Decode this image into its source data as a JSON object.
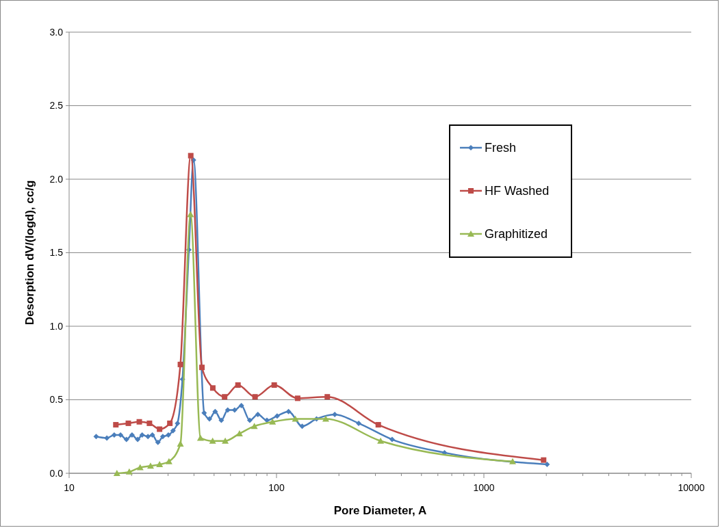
{
  "chart_data": {
    "type": "line",
    "xlabel": "Pore Diameter, A",
    "ylabel": "Desorption dV/(logd), cc/g",
    "log": "x",
    "grid": "y",
    "legend": "right",
    "line_style": "solid",
    "xlim": [
      10,
      10000
    ],
    "xticks": [
      10,
      100,
      1000,
      10000
    ],
    "ylim": [
      0,
      3
    ],
    "yticks": [
      {
        "value": 0,
        "label": "0.0"
      },
      {
        "value": 0.5,
        "label": "0.5"
      },
      {
        "value": 1,
        "label": "1.0"
      },
      {
        "value": 1.5,
        "label": "1.5"
      },
      {
        "value": 2,
        "label": "2.0"
      },
      {
        "value": 2.5,
        "label": "2.5"
      },
      {
        "value": 3,
        "label": "3.0"
      }
    ],
    "series": [
      {
        "name": "Fresh",
        "color": "#4a7ebb",
        "marker": "diamond",
        "x": [
          13.5,
          15.2,
          16.5,
          17.7,
          18.9,
          20.1,
          21.4,
          22.5,
          24.0,
          25.2,
          26.8,
          28.3,
          30.1,
          31.7,
          33.3,
          35.2,
          37.8,
          39.8,
          44.8,
          47.5,
          50.6,
          54.2,
          58.2,
          62.8,
          67.7,
          74.3,
          81.3,
          89.9,
          100.7,
          114.3,
          133,
          156,
          191,
          249,
          361,
          646,
          2018
        ],
        "values": [
          0.25,
          0.24,
          0.26,
          0.26,
          0.23,
          0.26,
          0.23,
          0.26,
          0.25,
          0.26,
          0.21,
          0.25,
          0.26,
          0.29,
          0.34,
          0.64,
          1.52,
          2.13,
          0.41,
          0.37,
          0.42,
          0.36,
          0.43,
          0.43,
          0.46,
          0.36,
          0.4,
          0.36,
          0.39,
          0.42,
          0.32,
          0.37,
          0.4,
          0.34,
          0.23,
          0.14,
          0.06
        ]
      },
      {
        "name": "HF Washed",
        "color": "#be4b48",
        "marker": "square",
        "x": [
          16.8,
          19.3,
          21.8,
          24.4,
          27.3,
          30.6,
          34.4,
          38.6,
          43.7,
          49.3,
          56.2,
          65.2,
          78.8,
          97.5,
          126.5,
          175.8,
          309.6,
          1941
        ],
        "values": [
          0.33,
          0.34,
          0.35,
          0.34,
          0.3,
          0.34,
          0.74,
          2.16,
          0.72,
          0.58,
          0.52,
          0.6,
          0.52,
          0.6,
          0.51,
          0.52,
          0.33,
          0.09
        ]
      },
      {
        "name": "Graphitized",
        "color": "#98b954",
        "marker": "triangle",
        "x": [
          17.0,
          19.5,
          22.0,
          24.7,
          27.3,
          30.3,
          34.4,
          38.5,
          43.0,
          49.2,
          56.6,
          66.3,
          78.2,
          95.7,
          123.3,
          172.8,
          317.7,
          1376
        ],
        "values": [
          0.0,
          0.01,
          0.04,
          0.05,
          0.06,
          0.08,
          0.2,
          1.76,
          0.24,
          0.22,
          0.22,
          0.27,
          0.32,
          0.35,
          0.37,
          0.37,
          0.22,
          0.08
        ]
      }
    ]
  }
}
